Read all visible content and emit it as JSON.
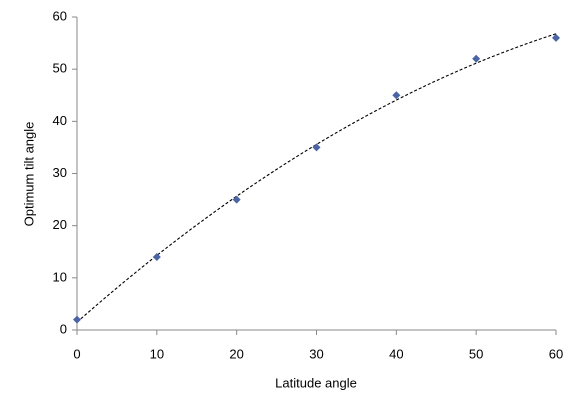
{
  "chart_data": {
    "type": "scatter",
    "xlabel": "Latitude angle",
    "ylabel": "Optimum tilt angle",
    "x": [
      0,
      10,
      20,
      30,
      40,
      50,
      60
    ],
    "values": [
      2,
      14,
      25,
      35,
      45,
      52,
      56
    ],
    "color": "#4a64a4",
    "xlim": [
      0,
      60
    ],
    "xticks": [
      0,
      10,
      20,
      30,
      40,
      50,
      60
    ],
    "ylim": [
      0,
      60
    ],
    "yticks": [
      0,
      10,
      20,
      30,
      40,
      50,
      60
    ],
    "grid": false,
    "trendline": {
      "type": "polynomial",
      "order": 2,
      "style": "dashed",
      "color": "#000000"
    }
  }
}
